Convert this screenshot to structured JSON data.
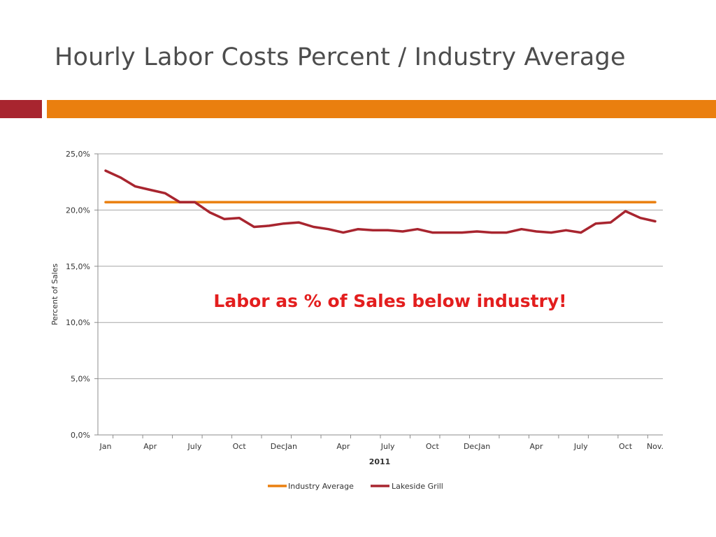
{
  "slide": {
    "title": "Hourly Labor Costs Percent / Industry Average",
    "accent_colors": {
      "left_bar": "#a8252f",
      "right_bar": "#ea7f0f"
    }
  },
  "chart_data": {
    "type": "line",
    "title": "",
    "xlabel": "2011",
    "ylabel": "Percent of Sales",
    "ylim": [
      0,
      25
    ],
    "ytick_labels": [
      "0,0%",
      "5,0%",
      "10,0%",
      "15,0%",
      "20,0%",
      "25,0%"
    ],
    "ytick_values": [
      0,
      5,
      10,
      15,
      20,
      25
    ],
    "grid": true,
    "num_points": 38,
    "xtick_labels": [
      {
        "index": 0,
        "label": "Jan"
      },
      {
        "index": 3,
        "label": "Apr"
      },
      {
        "index": 6,
        "label": "July"
      },
      {
        "index": 9,
        "label": "Oct"
      },
      {
        "index": 12,
        "label": "DecJan"
      },
      {
        "index": 16,
        "label": "Apr"
      },
      {
        "index": 19,
        "label": "July"
      },
      {
        "index": 22,
        "label": "Oct"
      },
      {
        "index": 25,
        "label": "DecJan"
      },
      {
        "index": 29,
        "label": "Apr"
      },
      {
        "index": 32,
        "label": "July"
      },
      {
        "index": 35,
        "label": "Oct"
      },
      {
        "index": 37,
        "label": "Nov."
      }
    ],
    "series": [
      {
        "name": "Industry Average",
        "color": "#ea7f0f",
        "values": [
          20.7,
          20.7,
          20.7,
          20.7,
          20.7,
          20.7,
          20.7,
          20.7,
          20.7,
          20.7,
          20.7,
          20.7,
          20.7,
          20.7,
          20.7,
          20.7,
          20.7,
          20.7,
          20.7,
          20.7,
          20.7,
          20.7,
          20.7,
          20.7,
          20.7,
          20.7,
          20.7,
          20.7,
          20.7,
          20.7,
          20.7,
          20.7,
          20.7,
          20.7,
          20.7,
          20.7,
          20.7,
          20.7
        ]
      },
      {
        "name": "Lakeside Grill",
        "color": "#a8252f",
        "values": [
          23.5,
          22.9,
          22.1,
          21.8,
          21.5,
          20.7,
          20.7,
          19.8,
          19.2,
          19.3,
          18.5,
          18.6,
          18.8,
          18.9,
          18.5,
          18.3,
          18.0,
          18.3,
          18.2,
          18.2,
          18.1,
          18.3,
          18.0,
          18.0,
          18.0,
          18.1,
          18.0,
          18.0,
          18.3,
          18.1,
          18.0,
          18.2,
          18.0,
          18.8,
          18.9,
          19.9,
          19.3,
          19.0
        ]
      }
    ],
    "annotation": "Labor as % of Sales below industry!",
    "legend": "bottom"
  }
}
